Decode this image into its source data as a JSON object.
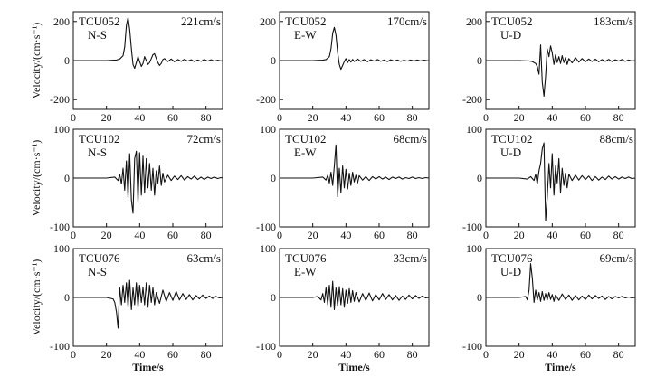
{
  "figure": {
    "ylabel": "Velocity/(cm·s⁻¹)",
    "xlabel": "Time/s"
  },
  "chart_data": [
    {
      "type": "line",
      "station": "TCU052",
      "component": "N-S",
      "peak": "221cm/s",
      "xlim": [
        0,
        90
      ],
      "ylim": [
        -250,
        250
      ],
      "xticks": [
        0,
        20,
        40,
        60,
        80
      ],
      "yticks": [
        -200,
        0,
        200
      ],
      "xlabel": "",
      "ylabel": "Velocity/(cm·s⁻¹)",
      "series": [
        {
          "x": [
            0,
            10,
            20,
            26,
            28,
            30,
            31,
            32,
            33,
            34,
            35,
            36,
            37,
            38,
            39,
            40,
            41,
            42,
            43,
            44,
            45,
            46,
            47,
            48,
            49,
            50,
            51,
            52,
            53,
            54,
            55,
            57,
            59,
            61,
            63,
            65,
            67,
            69,
            71,
            73,
            75,
            77,
            79,
            81,
            83,
            85,
            87,
            89,
            90
          ],
          "y": [
            0,
            0,
            0,
            3,
            8,
            25,
            70,
            180,
            221,
            160,
            60,
            -20,
            -40,
            -10,
            20,
            -5,
            -30,
            -15,
            20,
            0,
            -20,
            -10,
            10,
            30,
            35,
            10,
            -10,
            -25,
            -15,
            5,
            10,
            -5,
            8,
            -6,
            5,
            -4,
            6,
            -3,
            4,
            -5,
            3,
            -4,
            5,
            -3,
            4,
            -3,
            2,
            -2,
            0
          ]
        }
      ]
    },
    {
      "type": "line",
      "station": "TCU052",
      "component": "E-W",
      "peak": "170cm/s",
      "xlim": [
        0,
        90
      ],
      "ylim": [
        -250,
        250
      ],
      "xticks": [
        0,
        20,
        40,
        60,
        80
      ],
      "yticks": [
        -200,
        0,
        200
      ],
      "xlabel": "",
      "ylabel": "",
      "series": [
        {
          "x": [
            0,
            10,
            20,
            26,
            28,
            30,
            31,
            32,
            33,
            34,
            35,
            36,
            37,
            38,
            39,
            40,
            41,
            42,
            43,
            44,
            45,
            47,
            49,
            51,
            53,
            55,
            57,
            59,
            61,
            63,
            65,
            67,
            69,
            71,
            73,
            75,
            77,
            79,
            81,
            83,
            85,
            87,
            89,
            90
          ],
          "y": [
            0,
            0,
            0,
            2,
            5,
            20,
            60,
            140,
            170,
            130,
            40,
            -20,
            -45,
            -25,
            -5,
            10,
            -10,
            5,
            -8,
            6,
            -5,
            8,
            -4,
            5,
            -6,
            4,
            -3,
            5,
            -4,
            3,
            -5,
            4,
            -3,
            3,
            -4,
            2,
            -3,
            3,
            -2,
            3,
            -2,
            2,
            -1,
            0
          ]
        }
      ]
    },
    {
      "type": "line",
      "station": "TCU052",
      "component": "U-D",
      "peak": "183cm/s",
      "xlim": [
        0,
        90
      ],
      "ylim": [
        -250,
        250
      ],
      "xticks": [
        0,
        20,
        40,
        60,
        80
      ],
      "yticks": [
        -200,
        0,
        200
      ],
      "xlabel": "",
      "ylabel": "",
      "series": [
        {
          "x": [
            0,
            10,
            20,
            26,
            28,
            30,
            31,
            32,
            33,
            34,
            35,
            36,
            37,
            38,
            39,
            40,
            41,
            42,
            43,
            44,
            45,
            46,
            47,
            48,
            49,
            50,
            52,
            54,
            56,
            58,
            60,
            62,
            64,
            66,
            68,
            70,
            72,
            74,
            76,
            78,
            80,
            82,
            84,
            86,
            88,
            90
          ],
          "y": [
            0,
            0,
            0,
            -2,
            -5,
            -15,
            -30,
            -70,
            80,
            -110,
            -183,
            -80,
            60,
            20,
            75,
            40,
            -20,
            30,
            -10,
            20,
            -15,
            25,
            -10,
            15,
            -20,
            10,
            -12,
            15,
            -8,
            10,
            -6,
            8,
            -5,
            7,
            -6,
            5,
            -4,
            6,
            -5,
            4,
            -3,
            5,
            -4,
            3,
            -2,
            0
          ]
        }
      ]
    },
    {
      "type": "line",
      "station": "TCU102",
      "component": "N-S",
      "peak": "72cm/s",
      "xlim": [
        0,
        90
      ],
      "ylim": [
        -100,
        100
      ],
      "xticks": [
        0,
        20,
        40,
        60,
        80
      ],
      "yticks": [
        -100,
        0,
        100
      ],
      "xlabel": "",
      "ylabel": "Velocity/(cm·s⁻¹)",
      "series": [
        {
          "x": [
            0,
            10,
            20,
            25,
            27,
            28,
            29,
            30,
            31,
            32,
            33,
            34,
            35,
            36,
            37,
            38,
            39,
            40,
            41,
            42,
            43,
            44,
            45,
            46,
            47,
            48,
            49,
            50,
            51,
            52,
            53,
            54,
            55,
            57,
            59,
            61,
            63,
            65,
            67,
            69,
            71,
            73,
            75,
            77,
            79,
            81,
            83,
            85,
            87,
            89,
            90
          ],
          "y": [
            0,
            0,
            0,
            2,
            -5,
            8,
            -12,
            20,
            -25,
            35,
            -40,
            50,
            -45,
            -72,
            40,
            55,
            -50,
            52,
            -35,
            45,
            -30,
            40,
            -20,
            30,
            -25,
            20,
            -35,
            15,
            -10,
            25,
            -15,
            10,
            -8,
            6,
            -5,
            4,
            -3,
            5,
            -4,
            3,
            -2,
            4,
            -3,
            2,
            -3,
            2,
            -1,
            2,
            -1,
            1,
            0
          ]
        }
      ]
    },
    {
      "type": "line",
      "station": "TCU102",
      "component": "E-W",
      "peak": "68cm/s",
      "xlim": [
        0,
        90
      ],
      "ylim": [
        -100,
        100
      ],
      "xticks": [
        0,
        20,
        40,
        60,
        80
      ],
      "yticks": [
        -100,
        0,
        100
      ],
      "xlabel": "",
      "ylabel": "",
      "series": [
        {
          "x": [
            0,
            10,
            20,
            26,
            28,
            29,
            30,
            31,
            32,
            33,
            34,
            35,
            36,
            37,
            38,
            39,
            40,
            41,
            42,
            43,
            44,
            45,
            46,
            47,
            48,
            50,
            52,
            54,
            56,
            58,
            60,
            62,
            64,
            66,
            68,
            70,
            72,
            74,
            76,
            78,
            80,
            82,
            84,
            86,
            88,
            90
          ],
          "y": [
            0,
            0,
            0,
            2,
            -4,
            6,
            -10,
            12,
            -15,
            25,
            68,
            -38,
            20,
            -30,
            25,
            -20,
            18,
            -22,
            10,
            -15,
            12,
            -8,
            6,
            -10,
            5,
            -4,
            3,
            -5,
            3,
            -2,
            3,
            -2,
            2,
            -3,
            2,
            -1,
            2,
            -2,
            1,
            -1,
            2,
            -1,
            1,
            -1,
            1,
            0
          ]
        }
      ]
    },
    {
      "type": "line",
      "station": "TCU102",
      "component": "U-D",
      "peak": "88cm/s",
      "xlim": [
        0,
        90
      ],
      "ylim": [
        -100,
        100
      ],
      "xticks": [
        0,
        20,
        40,
        60,
        80
      ],
      "yticks": [
        -100,
        0,
        100
      ],
      "xlabel": "",
      "ylabel": "",
      "series": [
        {
          "x": [
            0,
            10,
            20,
            25,
            27,
            29,
            30,
            31,
            32,
            33,
            34,
            35,
            36,
            37,
            38,
            39,
            40,
            41,
            42,
            43,
            44,
            45,
            46,
            47,
            48,
            49,
            50,
            52,
            54,
            56,
            58,
            60,
            62,
            64,
            66,
            68,
            70,
            72,
            74,
            76,
            78,
            80,
            82,
            84,
            86,
            88,
            90
          ],
          "y": [
            0,
            0,
            0,
            -2,
            3,
            -5,
            8,
            -12,
            15,
            30,
            60,
            72,
            -88,
            -40,
            30,
            -20,
            50,
            -35,
            25,
            -10,
            40,
            -30,
            20,
            -15,
            10,
            -20,
            8,
            -5,
            6,
            -4,
            5,
            -3,
            4,
            -5,
            3,
            -4,
            2,
            -3,
            4,
            -2,
            3,
            -2,
            2,
            -1,
            2,
            -1,
            0
          ]
        }
      ]
    },
    {
      "type": "line",
      "station": "TCU076",
      "component": "N-S",
      "peak": "63cm/s",
      "xlim": [
        0,
        90
      ],
      "ylim": [
        -100,
        100
      ],
      "xticks": [
        0,
        20,
        40,
        60,
        80
      ],
      "yticks": [
        -100,
        0,
        100
      ],
      "xlabel": "Time/s",
      "ylabel": "Velocity/(cm·s⁻¹)",
      "series": [
        {
          "x": [
            0,
            10,
            20,
            24,
            25,
            26,
            27,
            28,
            29,
            30,
            31,
            32,
            33,
            34,
            35,
            36,
            37,
            38,
            39,
            40,
            41,
            42,
            43,
            44,
            45,
            46,
            47,
            48,
            49,
            50,
            52,
            54,
            56,
            58,
            60,
            62,
            64,
            66,
            68,
            70,
            72,
            74,
            76,
            78,
            80,
            82,
            84,
            86,
            88,
            90
          ],
          "y": [
            0,
            0,
            0,
            -3,
            -10,
            -30,
            -63,
            20,
            -15,
            25,
            -10,
            30,
            -20,
            35,
            -25,
            20,
            -15,
            30,
            -20,
            25,
            -10,
            20,
            -15,
            30,
            -20,
            25,
            -10,
            20,
            -15,
            10,
            -12,
            15,
            -8,
            10,
            -6,
            12,
            -5,
            8,
            -4,
            6,
            -5,
            4,
            -3,
            5,
            -2,
            3,
            -2,
            2,
            -1,
            0
          ]
        }
      ]
    },
    {
      "type": "line",
      "station": "TCU076",
      "component": "E-W",
      "peak": "33cm/s",
      "xlim": [
        0,
        90
      ],
      "ylim": [
        -100,
        100
      ],
      "xticks": [
        0,
        20,
        40,
        60,
        80
      ],
      "yticks": [
        -100,
        0,
        100
      ],
      "xlabel": "Time/s",
      "ylabel": "",
      "series": [
        {
          "x": [
            0,
            10,
            20,
            23,
            25,
            26,
            27,
            28,
            29,
            30,
            31,
            32,
            33,
            34,
            35,
            36,
            37,
            38,
            39,
            40,
            41,
            42,
            43,
            44,
            45,
            46,
            48,
            50,
            52,
            54,
            56,
            58,
            60,
            62,
            64,
            66,
            68,
            70,
            72,
            74,
            76,
            78,
            80,
            82,
            84,
            86,
            88,
            90
          ],
          "y": [
            0,
            0,
            0,
            2,
            -5,
            8,
            -10,
            20,
            -15,
            25,
            -20,
            33,
            -25,
            20,
            -18,
            22,
            -15,
            18,
            -20,
            15,
            -12,
            18,
            -10,
            14,
            -8,
            10,
            -9,
            8,
            -6,
            9,
            -7,
            6,
            -5,
            8,
            -4,
            6,
            -5,
            4,
            -6,
            3,
            -4,
            5,
            -3,
            4,
            -2,
            3,
            -1,
            0
          ]
        }
      ]
    },
    {
      "type": "line",
      "station": "TCU076",
      "component": "U-D",
      "peak": "69cm/s",
      "xlim": [
        0,
        90
      ],
      "ylim": [
        -100,
        100
      ],
      "xticks": [
        0,
        20,
        40,
        60,
        80
      ],
      "yticks": [
        -100,
        0,
        100
      ],
      "xlabel": "Time/s",
      "ylabel": "",
      "series": [
        {
          "x": [
            0,
            10,
            20,
            24,
            25,
            26,
            27,
            28,
            29,
            30,
            31,
            32,
            33,
            34,
            35,
            36,
            37,
            38,
            39,
            40,
            41,
            42,
            44,
            46,
            48,
            50,
            52,
            54,
            56,
            58,
            60,
            62,
            64,
            66,
            68,
            70,
            72,
            74,
            76,
            78,
            80,
            82,
            84,
            86,
            88,
            90
          ],
          "y": [
            0,
            0,
            0,
            2,
            -5,
            15,
            69,
            40,
            -10,
            15,
            -5,
            10,
            -8,
            12,
            -6,
            8,
            -5,
            10,
            -4,
            6,
            -8,
            5,
            -6,
            7,
            -4,
            5,
            -6,
            4,
            -5,
            3,
            -4,
            5,
            -3,
            4,
            -2,
            3,
            -4,
            2,
            -3,
            2,
            -1,
            2,
            -1,
            1,
            -1,
            0
          ]
        }
      ]
    }
  ]
}
